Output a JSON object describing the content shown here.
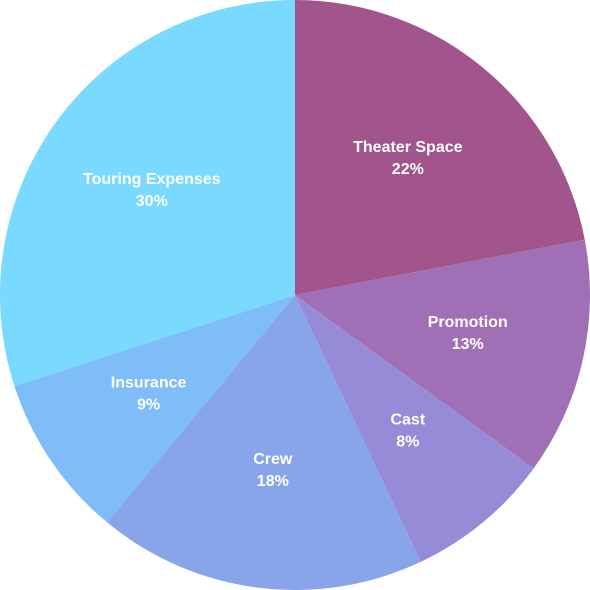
{
  "chart_data": {
    "type": "pie",
    "categories": [
      "Theater Space",
      "Promotion",
      "Cast",
      "Crew",
      "Insurance",
      "Touring Expenses"
    ],
    "values": [
      22,
      13,
      8,
      18,
      9,
      30
    ],
    "value_labels": [
      "22%",
      "13%",
      "8%",
      "18%",
      "9%",
      "30%"
    ],
    "colors": [
      "#a2558c",
      "#a070b6",
      "#968bd6",
      "#88a5e9",
      "#7ebdf7",
      "#79d9ff"
    ]
  }
}
